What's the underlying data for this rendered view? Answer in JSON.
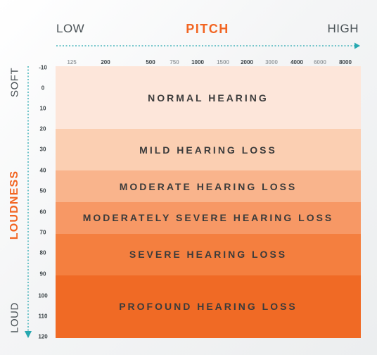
{
  "pitch": {
    "low": "LOW",
    "title": "PITCH",
    "high": "HIGH",
    "frequencies": [
      "125",
      "200",
      "500",
      "750",
      "1000",
      "1500",
      "2000",
      "3000",
      "4000",
      "6000",
      "8000"
    ],
    "muted_frequencies": [
      "125",
      "750",
      "1500",
      "3000",
      "6000"
    ]
  },
  "loudness": {
    "soft": "SOFT",
    "title": "LOUDNESS",
    "loud": "LOUD",
    "levels": [
      "-10",
      "0",
      "10",
      "20",
      "30",
      "40",
      "50",
      "60",
      "70",
      "80",
      "90",
      "100",
      "110",
      "120"
    ],
    "range": [
      -10,
      120
    ]
  },
  "bands": [
    {
      "label": "NORMAL HEARING",
      "from": -10,
      "to": 20,
      "color": "#fde6da"
    },
    {
      "label": "MILD HEARING LOSS",
      "from": 20,
      "to": 40,
      "color": "#fbcfb2"
    },
    {
      "label": "MODERATE HEARING LOSS",
      "from": 40,
      "to": 55,
      "color": "#f9b48c"
    },
    {
      "label": "MODERATELY SEVERE HEARING LOSS",
      "from": 55,
      "to": 70,
      "color": "#f79865"
    },
    {
      "label": "SEVERE HEARING LOSS",
      "from": 70,
      "to": 90,
      "color": "#f47f3f"
    },
    {
      "label": "PROFOUND HEARING LOSS",
      "from": 90,
      "to": 120,
      "color": "#f06a25"
    }
  ],
  "colors": {
    "accent": "#f26522",
    "axis": "#27a8b0",
    "text_dark": "#3a4246",
    "text_muted": "#9a9fa2"
  }
}
